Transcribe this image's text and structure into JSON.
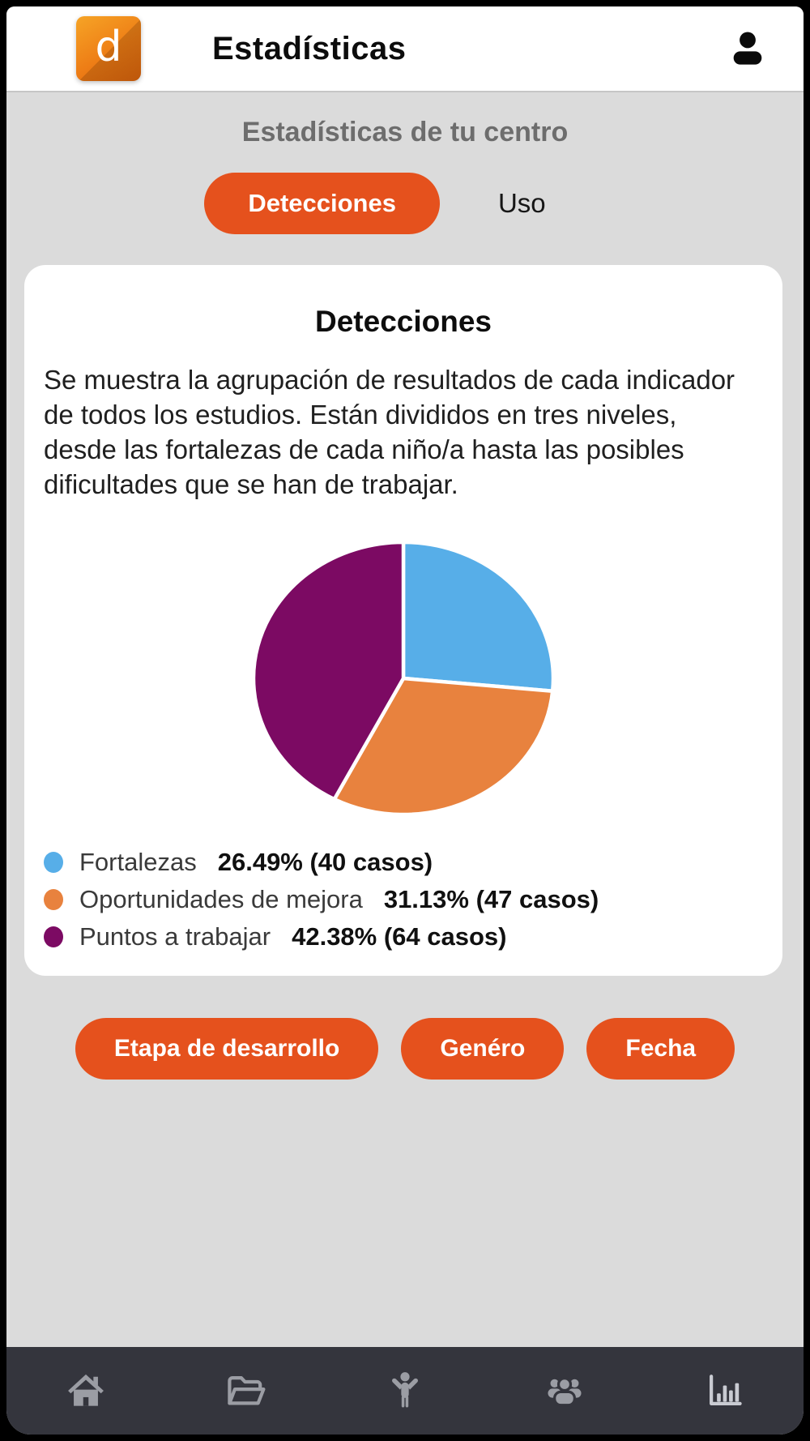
{
  "app": {
    "title": "Estadísticas",
    "logo_letter": "d"
  },
  "page": {
    "subtitle": "Estadísticas de tu centro"
  },
  "tabs": [
    {
      "label": "Detecciones",
      "active": true
    },
    {
      "label": "Uso",
      "active": false
    }
  ],
  "card": {
    "title": "Detecciones",
    "description": "Se muestra la agrupación de resultados de cada indicador de todos los estudios. Están divididos en tres niveles, desde las fortalezas de cada niño/a hasta las posibles dificultades que se han de trabajar."
  },
  "chart_data": {
    "type": "pie",
    "title": "Detecciones",
    "labels": [
      "Fortalezas",
      "Oportunidades de mejora",
      "Puntos a trabajar"
    ],
    "values": [
      26.49,
      31.13,
      42.38
    ],
    "cases": [
      40,
      47,
      64
    ],
    "value_suffix": "%",
    "colors": [
      "#57AEE8",
      "#E8823E",
      "#7C0A63"
    ],
    "start_angle_deg": 0,
    "direction": "clockwise",
    "legend_position": "bottom-left",
    "slice_border_color": "#FFFFFF"
  },
  "legend": [
    {
      "label": "Fortalezas",
      "value": "26.49% (40 casos)"
    },
    {
      "label": "Oportunidades de mejora",
      "value": "31.13% (47 casos)"
    },
    {
      "label": "Puntos a trabajar",
      "value": "42.38% (64 casos)"
    }
  ],
  "filters": [
    {
      "label": "Etapa de desarrollo"
    },
    {
      "label": "Genéro"
    },
    {
      "label": "Fecha"
    }
  ],
  "nav": {
    "items": [
      {
        "icon": "home-icon",
        "active": false
      },
      {
        "icon": "folder-open-icon",
        "active": false
      },
      {
        "icon": "child-icon",
        "active": false
      },
      {
        "icon": "users-icon",
        "active": false
      },
      {
        "icon": "bar-chart-icon",
        "active": true
      }
    ]
  },
  "colors": {
    "accent_orange": "#E5511D",
    "background_gray": "#DBDBDB",
    "card_white": "#FFFFFF",
    "nav_background": "#34353D",
    "nav_icon": "#9B9DA4",
    "nav_icon_active": "#C9CBD2",
    "subtitle_gray": "#6D6D6D",
    "title_black": "#0C0C0C"
  }
}
